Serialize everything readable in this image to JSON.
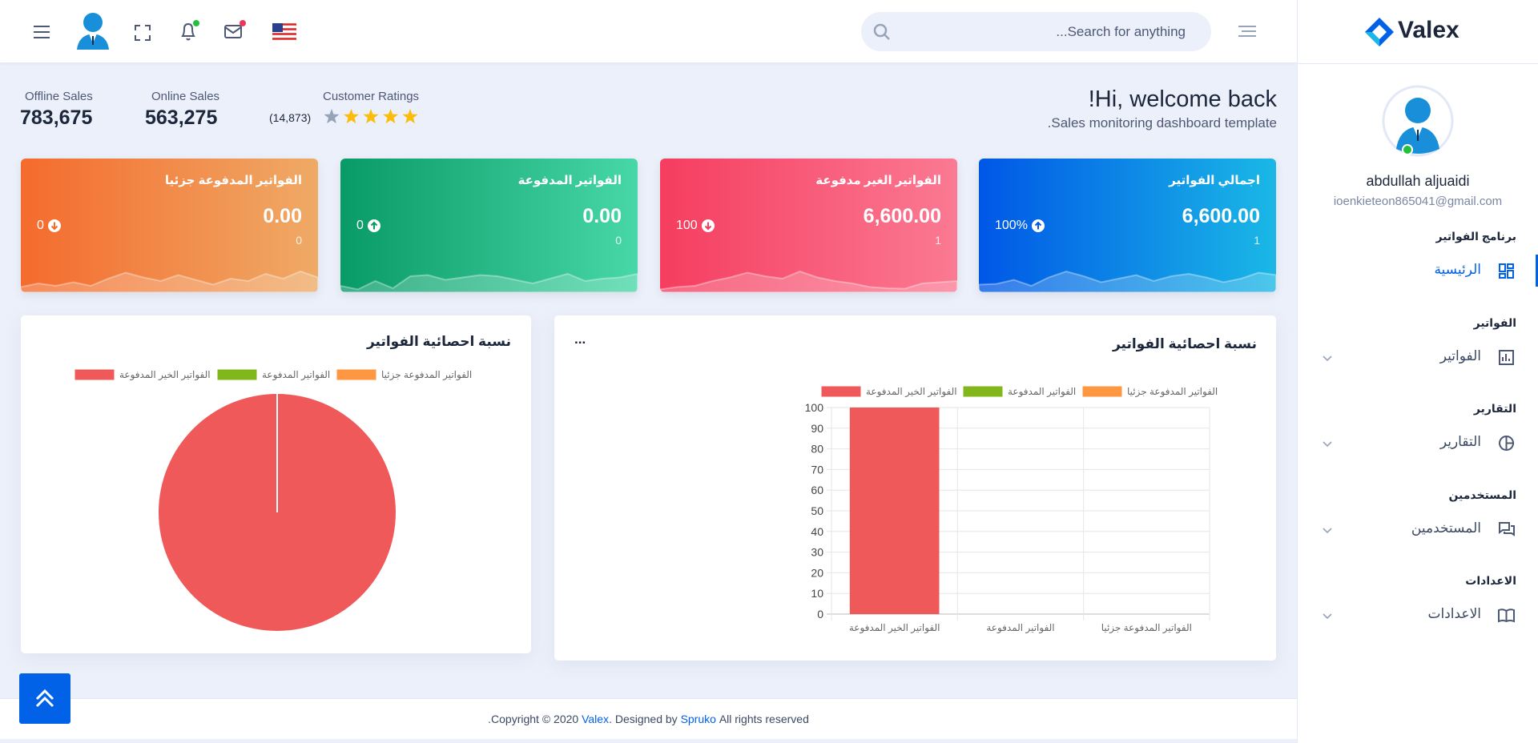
{
  "header": {
    "search_placeholder": "...Search for anything"
  },
  "sidebar": {
    "brand": "Valex",
    "user": {
      "name": "abdullah aljuaidi",
      "email": "ioenkieteon865041@gmail.com"
    },
    "sections": [
      {
        "heading": "برنامج الفواتير",
        "item": "الرئيسية"
      },
      {
        "heading": "الفواتير",
        "item": "الفواتير"
      },
      {
        "heading": "التقارير",
        "item": "التقارير"
      },
      {
        "heading": "المستخدمين",
        "item": "المستخدمين"
      },
      {
        "heading": "الاعدادات",
        "item": "الاعدادات"
      }
    ]
  },
  "welcome": {
    "title": "!Hi, welcome back",
    "subtitle": ".Sales monitoring dashboard template"
  },
  "stats": [
    {
      "label": "Offline Sales",
      "value": "783,675"
    },
    {
      "label": "Online Sales",
      "value": "563,275"
    }
  ],
  "ratings": {
    "label": "Customer Ratings",
    "count": "(14,873)",
    "rating": 4,
    "rating_scale": 5
  },
  "cards": [
    {
      "title": "اجمالي الفواتير",
      "value": "6,600.00",
      "count": "1",
      "change": "100%",
      "trend": "up",
      "gradient": [
        "#0057e6",
        "#1ab8e6"
      ]
    },
    {
      "title": "الفواتير الغير مدفوعة",
      "value": "6,600.00",
      "count": "1",
      "change": "100",
      "trend": "down",
      "gradient": [
        "#f53d5f",
        "#fb7a93"
      ]
    },
    {
      "title": "الفواتير المدفوعة",
      "value": "0.00",
      "count": "0",
      "change": "0",
      "trend": "up",
      "gradient": [
        "#089a67",
        "#48d7a7"
      ]
    },
    {
      "title": "الفواتير المدفوعة جزئيا",
      "value": "0.00",
      "count": "0",
      "change": "0",
      "trend": "down",
      "gradient": [
        "#f46b2d",
        "#efaa66"
      ]
    }
  ],
  "bar_chart": {
    "type": "bar",
    "title": "نسبة احصائية الفواتير",
    "menu": "...",
    "categories": [
      "الفواتير الخير المدفوعة",
      "الفواتير المدفوعة",
      "الفواتير المدفوعة جزئيا"
    ],
    "values": [
      100,
      0,
      0
    ],
    "colors": [
      "#ef5959",
      "#81b71a",
      "#ff9642"
    ],
    "ylim": [
      0,
      100
    ],
    "yticks": [
      0,
      10,
      20,
      30,
      40,
      50,
      60,
      70,
      80,
      90,
      100
    ],
    "grid": true
  },
  "pie_chart": {
    "type": "pie",
    "title": "نسبة احصائية الفواتير",
    "categories": [
      "الفواتير الخير المدفوعة",
      "الفواتير المدفوعة",
      "الفواتير المدفوعة جزئيا"
    ],
    "values": [
      100,
      0,
      0
    ],
    "colors": [
      "#ef5959",
      "#81b71a",
      "#ff9642"
    ]
  },
  "footer": {
    "parts": [
      ".Copyright © 2020",
      "Valex",
      ". Designed by",
      "Spruko",
      "All rights reserved"
    ]
  }
}
